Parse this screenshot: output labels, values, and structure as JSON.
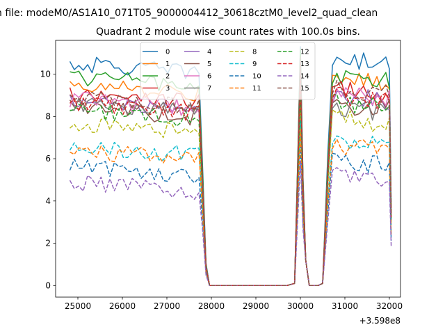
{
  "figure": {
    "suptitle": "n file: modeM0/AS1A10_071T05_9000004412_30618cztM0_level2_quad_clean",
    "title": "Quadrant 2 module wise count rates with 100.0s bins.",
    "offset_text": "+3.598e8"
  },
  "chart_data": {
    "type": "line",
    "title": "Quadrant 2 module wise count rates with 100.0s bins.",
    "xlabel": "",
    "ylabel": "",
    "x_offset": 359800000,
    "xlim": [
      24500,
      32250
    ],
    "ylim": [
      -0.55,
      11.6
    ],
    "xticks": [
      25000,
      26000,
      27000,
      28000,
      29000,
      30000,
      31000,
      32000
    ],
    "yticks": [
      0,
      2,
      4,
      6,
      8,
      10
    ],
    "grid": false,
    "legend": {
      "position": "top-center",
      "columns": 4
    },
    "x_seg1": [
      24820,
      24920,
      25020,
      25120,
      25220,
      25320,
      25420,
      25520,
      25620,
      25720,
      25820,
      25920,
      26020,
      26120,
      26220,
      26320,
      26420,
      26520,
      26620,
      26720,
      26820,
      26920,
      27020,
      27120,
      27220,
      27320,
      27420,
      27520,
      27620,
      27720,
      27800
    ],
    "x_seg2": [
      30620,
      30720,
      30820,
      30920,
      31020,
      31120,
      31220,
      31320,
      31420,
      31520,
      31620,
      31720,
      31820,
      31920,
      32000,
      32040
    ],
    "series": [
      {
        "name": "0",
        "color": "#1f77b4",
        "dash": "solid",
        "level1": 10.5,
        "level2": 10.7,
        "spike": 11.3
      },
      {
        "name": "1",
        "color": "#ff7f0e",
        "dash": "solid",
        "level1": 9.5,
        "level2": 9.8,
        "spike": 10.2
      },
      {
        "name": "2",
        "color": "#2ca02c",
        "dash": "solid",
        "level1": 9.9,
        "level2": 9.9,
        "spike": 11.2
      },
      {
        "name": "3",
        "color": "#d62728",
        "dash": "solid",
        "level1": 9.1,
        "level2": 9.3,
        "spike": 10.6
      },
      {
        "name": "4",
        "color": "#9467bd",
        "dash": "solid",
        "level1": 8.7,
        "level2": 9.0,
        "spike": 10.0
      },
      {
        "name": "5",
        "color": "#8c564b",
        "dash": "solid",
        "level1": 8.4,
        "level2": 8.6,
        "spike": 10.4
      },
      {
        "name": "6",
        "color": "#e377c2",
        "dash": "solid",
        "level1": 8.8,
        "level2": 9.1,
        "spike": 9.8
      },
      {
        "name": "7",
        "color": "#7f7f7f",
        "dash": "solid",
        "level1": 8.6,
        "level2": 8.4,
        "spike": 10.1
      },
      {
        "name": "8",
        "color": "#bcbd22",
        "dash": "dashed",
        "level1": 7.7,
        "level2": 7.9,
        "spike": 8.8
      },
      {
        "name": "9",
        "color": "#17becf",
        "dash": "dashed",
        "level1": 6.6,
        "level2": 6.8,
        "spike": 7.8
      },
      {
        "name": "10",
        "color": "#1f77b4",
        "dash": "dashed",
        "level1": 5.6,
        "level2": 5.9,
        "spike": 6.6
      },
      {
        "name": "11",
        "color": "#ff7f0e",
        "dash": "dashed",
        "level1": 6.4,
        "level2": 6.6,
        "spike": 7.4
      },
      {
        "name": "12",
        "color": "#2ca02c",
        "dash": "dashed",
        "level1": 8.3,
        "level2": 8.7,
        "spike": 9.3
      },
      {
        "name": "13",
        "color": "#d62728",
        "dash": "dashed",
        "level1": 8.6,
        "level2": 9.0,
        "spike": 9.9
      },
      {
        "name": "14",
        "color": "#9467bd",
        "dash": "dashed",
        "level1": 4.9,
        "level2": 5.2,
        "spike": 5.9
      },
      {
        "name": "15",
        "color": "#8c564b",
        "dash": "dashed",
        "level1": 8.9,
        "level2": 9.3,
        "spike": 10.8
      }
    ]
  }
}
